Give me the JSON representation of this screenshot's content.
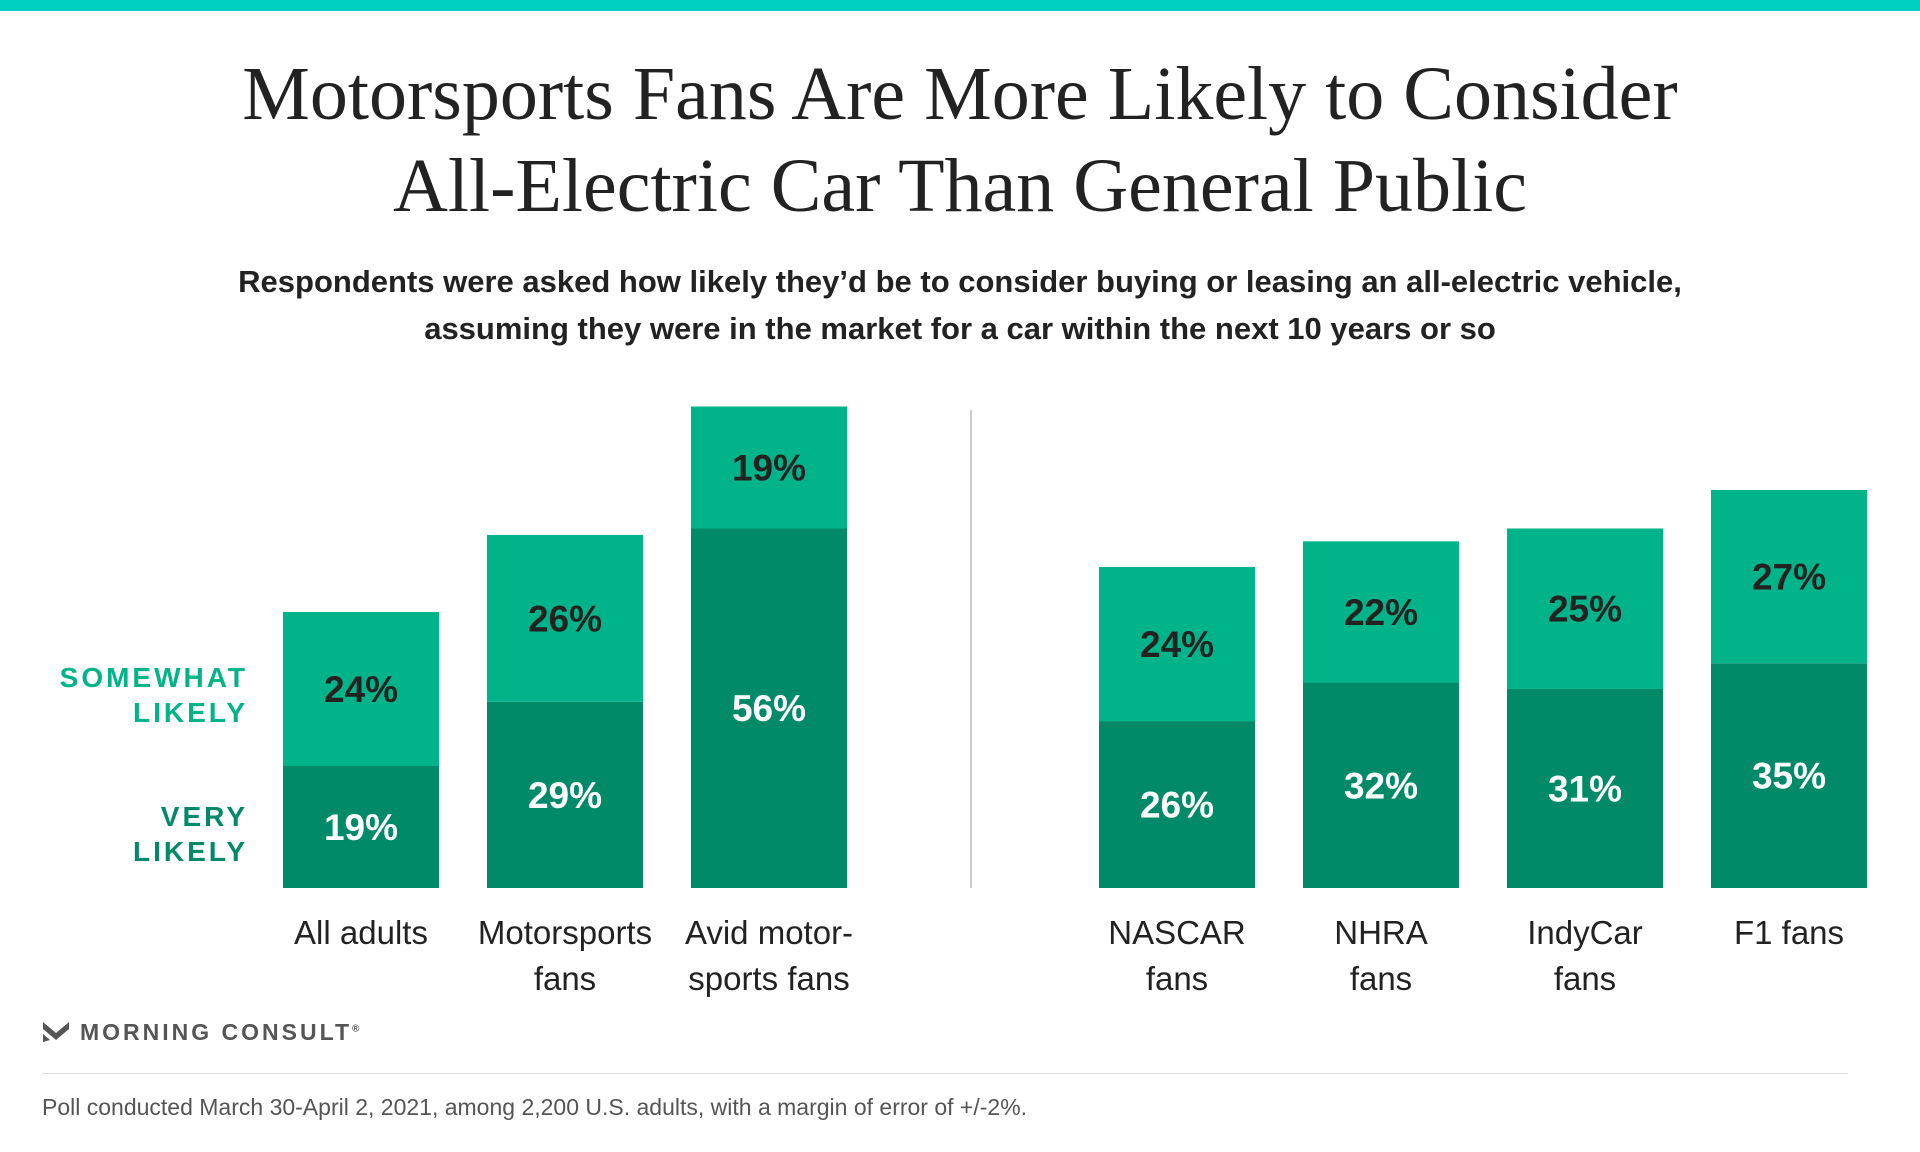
{
  "title": {
    "line1": "Motorsports Fans Are More Likely to Consider",
    "line2": "All-Electric Car Than General Public"
  },
  "subtitle": {
    "line1": "Respondents were asked how likely they’d be to consider buying or leasing an all-electric vehicle,",
    "line2": "assuming they were in the market for a car within the next 10 years or so"
  },
  "chart_data": {
    "type": "bar",
    "stacked": true,
    "groups": [
      {
        "categories": [
          [
            "All adults"
          ],
          [
            "Motorsports",
            "fans"
          ],
          [
            "Avid motor-",
            "sports fans"
          ]
        ]
      },
      {
        "categories": [
          [
            "NASCAR",
            "fans"
          ],
          [
            "NHRA",
            "fans"
          ],
          [
            "IndyCar",
            "fans"
          ],
          [
            "F1 fans"
          ]
        ]
      }
    ],
    "series": [
      {
        "name": "VERY LIKELY",
        "color": "#008a68",
        "values": [
          19,
          29,
          56,
          26,
          32,
          31,
          35
        ]
      },
      {
        "name": "SOMEWHAT LIKELY",
        "color": "#00b389",
        "values": [
          24,
          26,
          19,
          24,
          22,
          25,
          27
        ]
      }
    ],
    "legend": {
      "placement": "left",
      "somewhat": [
        "SOMEWHAT",
        "LIKELY"
      ],
      "very": [
        "VERY",
        "LIKELY"
      ]
    },
    "value_suffix": "%",
    "label_color": "#222222",
    "label_color_dark": "#ffffff"
  },
  "brand": {
    "name": "MORNING CONSULT",
    "mark": "®"
  },
  "footnote": "Poll conducted March 30-April 2, 2021, among 2,200 U.S. adults, with a margin of error of +/-2%."
}
